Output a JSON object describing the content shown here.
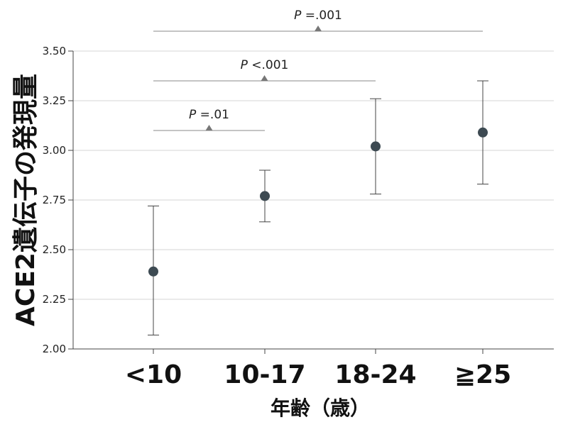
{
  "chart_data": {
    "type": "scatter",
    "categories": [
      "<10",
      "10-17",
      "18-24",
      "≧25"
    ],
    "series": [
      {
        "values": [
          2.39,
          2.77,
          3.02,
          3.09
        ],
        "error_low": [
          2.07,
          2.64,
          2.78,
          2.83
        ],
        "error_high": [
          2.72,
          2.9,
          3.26,
          3.35
        ]
      }
    ],
    "ylabel": "ACE2遺伝子の発現量",
    "xlabel": "年齢（歳）",
    "ylim": [
      2.0,
      3.5
    ],
    "yticks": [
      "2.00",
      "2.25",
      "2.50",
      "2.75",
      "3.00",
      "3.25",
      "3.50"
    ],
    "grid": true,
    "annotations": [
      {
        "from": 0,
        "to": 1,
        "p_symbol": "P",
        "p_value": "=.01"
      },
      {
        "from": 0,
        "to": 2,
        "p_symbol": "P",
        "p_value": "<.001"
      },
      {
        "from": 0,
        "to": 3,
        "p_symbol": "P",
        "p_value": "=.001"
      }
    ],
    "colors": {
      "marker": "#3d4a52",
      "grid": "#d6d6d6",
      "bracket": "#888888",
      "errorbar": "#444444"
    }
  }
}
